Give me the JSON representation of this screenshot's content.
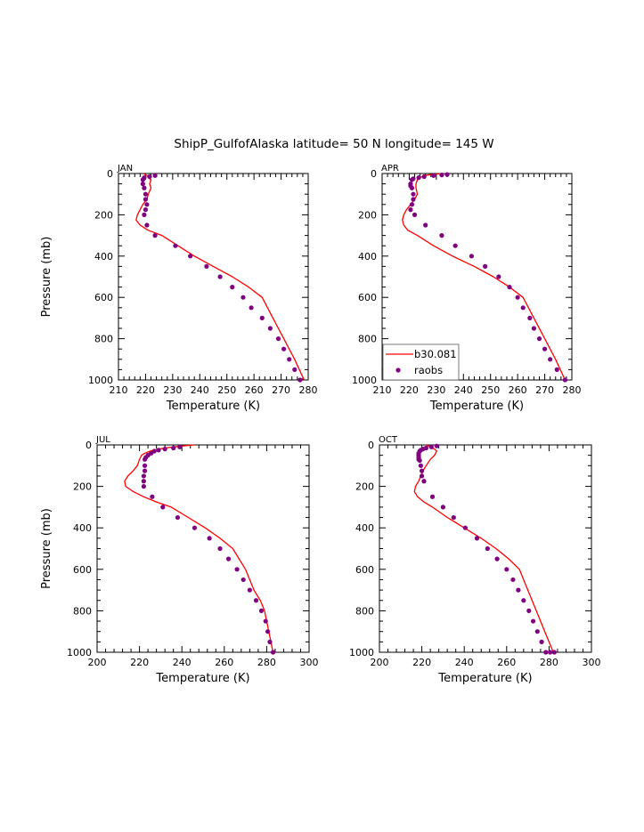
{
  "title": "ShipP_GulfofAlaska  latitude= 50 N longitude= 145 W",
  "colors": {
    "model": "#ff0000",
    "obs": "#800080",
    "axis": "#000000"
  },
  "legend": {
    "items": [
      {
        "label": "b30.081",
        "kind": "line"
      },
      {
        "label": "raobs",
        "kind": "marker"
      }
    ]
  },
  "chart_data": [
    {
      "type": "line",
      "panel_label": "JAN",
      "xlabel": "Temperature (K)",
      "ylabel": "Pressure (mb)",
      "xlim": [
        210,
        280
      ],
      "ylim": [
        1000,
        0
      ],
      "xticks": [
        210,
        220,
        230,
        240,
        250,
        260,
        270,
        280
      ],
      "yticks": [
        0,
        200,
        400,
        600,
        800,
        1000
      ],
      "series": [
        {
          "name": "b30.081",
          "kind": "line",
          "x": [
            219.2,
            220.5,
            221,
            222,
            221.5,
            222,
            221,
            220.5,
            219,
            218,
            217,
            216.5,
            218,
            221,
            226,
            232,
            238,
            245,
            252,
            258,
            263,
            267,
            271,
            275,
            278.5
          ],
          "y": [
            0,
            10,
            20,
            30,
            50,
            70,
            100,
            125,
            150,
            175,
            200,
            225,
            250,
            275,
            300,
            350,
            400,
            450,
            500,
            550,
            600,
            700,
            800,
            900,
            1000
          ]
        },
        {
          "name": "raobs",
          "kind": "marker",
          "x": [
            223.5,
            221.5,
            219.5,
            219,
            219,
            219.5,
            220,
            220,
            220.5,
            220,
            219.5,
            220.5,
            223.5,
            231,
            236.5,
            242.5,
            247.5,
            252,
            256,
            259,
            263,
            266,
            269,
            271,
            273,
            275,
            277
          ],
          "y": [
            10,
            15,
            20,
            30,
            50,
            70,
            100,
            125,
            150,
            175,
            200,
            250,
            300,
            350,
            400,
            450,
            500,
            550,
            600,
            650,
            700,
            750,
            800,
            850,
            900,
            950,
            1000
          ]
        }
      ]
    },
    {
      "type": "line",
      "panel_label": "APR",
      "xlabel": "Temperature (K)",
      "ylabel": "",
      "xlim": [
        210,
        280
      ],
      "ylim": [
        1000,
        0
      ],
      "xticks": [
        210,
        220,
        230,
        240,
        250,
        260,
        270,
        280
      ],
      "yticks": [
        0,
        200,
        400,
        600,
        800,
        1000
      ],
      "series": [
        {
          "name": "b30.081",
          "kind": "line",
          "x": [
            232,
            228,
            225.5,
            224,
            223,
            222.5,
            222.5,
            223,
            222,
            220.5,
            219,
            218,
            217.5,
            218,
            219.5,
            223,
            229,
            236,
            244,
            251,
            257,
            262,
            266,
            270,
            274,
            277.5
          ],
          "y": [
            0,
            5,
            10,
            20,
            30,
            50,
            70,
            100,
            125,
            150,
            175,
            200,
            225,
            250,
            275,
            300,
            350,
            400,
            450,
            500,
            550,
            600,
            700,
            800,
            900,
            1000
          ]
        },
        {
          "name": "raobs",
          "kind": "marker",
          "x": [
            234,
            232,
            229,
            225.5,
            223.5,
            221.5,
            221,
            220.5,
            220.5,
            221,
            221.5,
            221.5,
            221,
            220.5,
            222,
            226,
            232,
            237,
            243,
            248,
            253,
            257,
            260,
            262,
            264.5,
            266,
            268,
            270,
            272,
            274.5,
            277.5
          ],
          "y": [
            5,
            7,
            10,
            15,
            20,
            25,
            30,
            50,
            60,
            70,
            100,
            125,
            150,
            175,
            200,
            250,
            300,
            350,
            400,
            450,
            500,
            550,
            600,
            650,
            700,
            750,
            800,
            850,
            900,
            950,
            1000
          ]
        }
      ]
    },
    {
      "type": "line",
      "panel_label": "JUL",
      "xlabel": "Temperature (K)",
      "ylabel": "Pressure (mb)",
      "xlim": [
        200,
        300
      ],
      "ylim": [
        1000,
        0
      ],
      "xticks": [
        200,
        220,
        240,
        260,
        280,
        300
      ],
      "yticks": [
        0,
        200,
        400,
        600,
        800,
        1000
      ],
      "series": [
        {
          "name": "b30.081",
          "kind": "line",
          "x": [
            246,
            240,
            236,
            232,
            229,
            227,
            225,
            222.5,
            221,
            220.5,
            220,
            219,
            217,
            214.5,
            213,
            213.5,
            217,
            222,
            228,
            235,
            243,
            251,
            258,
            264,
            270,
            274,
            277,
            279,
            281,
            283
          ],
          "y": [
            0,
            5,
            10,
            15,
            20,
            25,
            30,
            40,
            50,
            60,
            70,
            100,
            125,
            150,
            175,
            200,
            225,
            250,
            275,
            300,
            350,
            400,
            450,
            500,
            600,
            700,
            750,
            800,
            900,
            1000
          ]
        },
        {
          "name": "raobs",
          "kind": "marker",
          "x": [
            239,
            236,
            232,
            229,
            227,
            225.5,
            224,
            223,
            222.5,
            222.5,
            222.5,
            222,
            222,
            222,
            226,
            231,
            238,
            246,
            253,
            258,
            262,
            266,
            269,
            272,
            275,
            277.5,
            279.5,
            280.5,
            281.5,
            283
          ],
          "y": [
            10,
            15,
            20,
            25,
            30,
            40,
            50,
            60,
            70,
            100,
            125,
            150,
            175,
            200,
            250,
            300,
            350,
            400,
            450,
            500,
            550,
            600,
            650,
            700,
            750,
            800,
            850,
            900,
            950,
            1000
          ]
        }
      ]
    },
    {
      "type": "line",
      "panel_label": "OCT",
      "xlabel": "Temperature (K)",
      "ylabel": "",
      "xlim": [
        200,
        300
      ],
      "ylim": [
        1000,
        0
      ],
      "xticks": [
        200,
        220,
        240,
        260,
        280,
        300
      ],
      "yticks": [
        0,
        200,
        400,
        600,
        800,
        1000
      ],
      "series": [
        {
          "name": "b30.081",
          "kind": "line",
          "x": [
            222,
            224,
            226,
            227,
            226,
            224,
            222,
            220.5,
            219.5,
            218.5,
            217,
            216.5,
            218,
            221,
            225,
            232,
            240,
            248,
            255,
            261,
            266,
            270,
            274,
            278,
            282
          ],
          "y": [
            0,
            10,
            20,
            30,
            50,
            70,
            100,
            125,
            150,
            175,
            200,
            225,
            250,
            275,
            300,
            350,
            400,
            450,
            500,
            550,
            600,
            700,
            800,
            900,
            1000
          ]
        },
        {
          "name": "raobs",
          "kind": "marker",
          "x": [
            227,
            224.5,
            222,
            220.5,
            219.5,
            219,
            218.5,
            218.5,
            218.5,
            218.5,
            219,
            219.5,
            220,
            220,
            221,
            225,
            230,
            235,
            240.5,
            246,
            251,
            255.5,
            260,
            263,
            265.5,
            268,
            270.5,
            272.5,
            274.5,
            276.5,
            278.5,
            280.5,
            282.5
          ],
          "y": [
            5,
            10,
            15,
            20,
            25,
            30,
            40,
            50,
            60,
            70,
            75,
            100,
            125,
            150,
            175,
            250,
            300,
            350,
            400,
            450,
            500,
            550,
            600,
            650,
            700,
            750,
            800,
            850,
            900,
            950,
            1000,
            1000,
            1000
          ]
        }
      ]
    }
  ]
}
